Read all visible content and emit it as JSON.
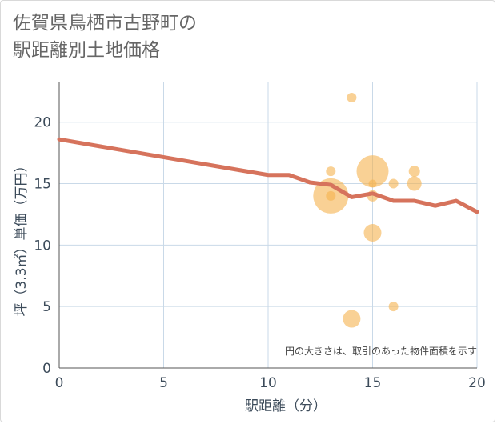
{
  "chart_data": {
    "type": "scatter",
    "title_lines": [
      "佐賀県鳥栖市古野町の",
      "駅距離別土地価格"
    ],
    "xlabel": "駅距離（分）",
    "ylabel": "坪（3.3㎡）単価（万円）",
    "xlim": [
      0,
      20
    ],
    "ylim": [
      0,
      23.3
    ],
    "x_ticks": [
      0,
      5,
      10,
      15,
      20
    ],
    "y_ticks": [
      0,
      5,
      10,
      15,
      20
    ],
    "grid": true,
    "note": "円の大きさは、取引のあった物件面積を示す",
    "points": [
      {
        "x": 13,
        "y": 14,
        "size": 22
      },
      {
        "x": 13,
        "y": 16,
        "size": 6
      },
      {
        "x": 13,
        "y": 14,
        "size": 6
      },
      {
        "x": 14,
        "y": 22,
        "size": 6
      },
      {
        "x": 14,
        "y": 4,
        "size": 11
      },
      {
        "x": 15,
        "y": 16,
        "size": 20
      },
      {
        "x": 15,
        "y": 15,
        "size": 5
      },
      {
        "x": 15,
        "y": 14,
        "size": 7
      },
      {
        "x": 15,
        "y": 11,
        "size": 11
      },
      {
        "x": 16,
        "y": 15,
        "size": 6
      },
      {
        "x": 16,
        "y": 5,
        "size": 6
      },
      {
        "x": 17,
        "y": 16,
        "size": 7
      },
      {
        "x": 17,
        "y": 15,
        "size": 9
      }
    ],
    "trend": {
      "x": [
        0,
        10,
        11,
        12,
        13,
        14,
        15,
        16,
        17,
        18,
        19,
        20
      ],
      "y": [
        18.6,
        15.7,
        15.7,
        15.1,
        14.9,
        13.9,
        14.2,
        13.6,
        13.6,
        13.2,
        13.6,
        12.7
      ]
    },
    "colors": {
      "bubble": "#f5b34f",
      "trend": "#d6735c",
      "grid": "#c9d9e8",
      "axis": "#555555"
    }
  }
}
